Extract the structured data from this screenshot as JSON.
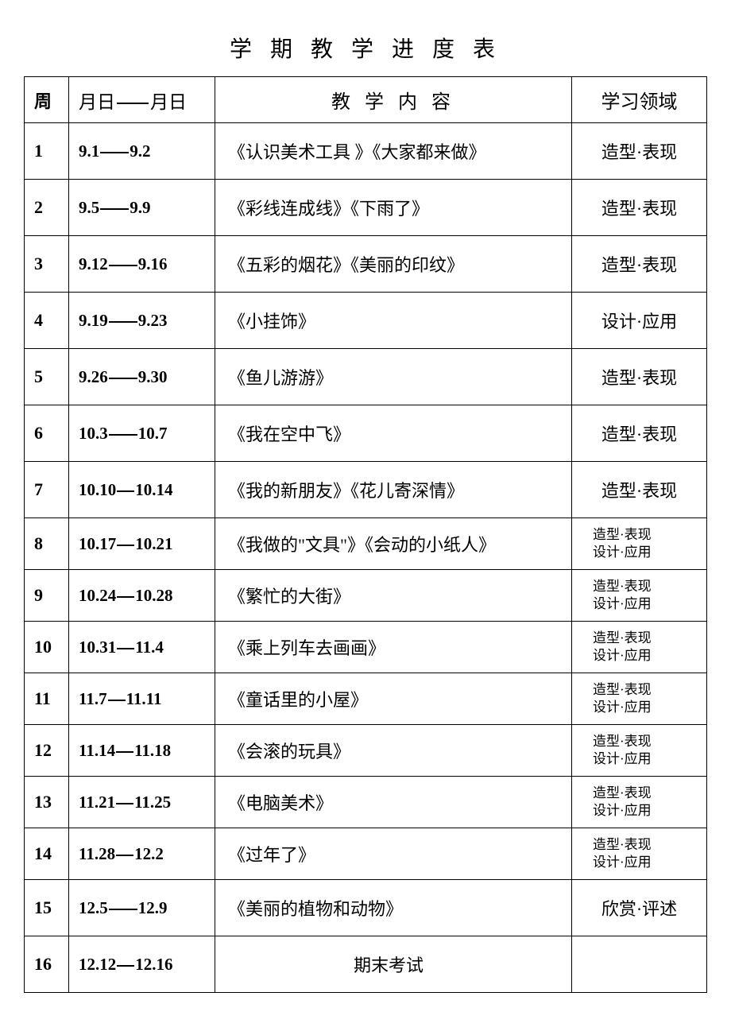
{
  "title": "学 期 教 学 进 度 表",
  "headers": {
    "week": "周",
    "date_prefix": "月日",
    "date_suffix": "月日",
    "content": "教 学 内 容",
    "domain": "学习领域"
  },
  "domain_single": {
    "modeling": "造型·表现",
    "design": "设计·应用",
    "appreciate": "欣赏·评述"
  },
  "domain_double_line1": "造型·表现",
  "domain_double_line2": "设计·应用",
  "rows": [
    {
      "week": "1",
      "d1": "9.1",
      "d2": "9.2",
      "dash": "long",
      "content": "《认识美术工具 》《大家都来做》",
      "domain_type": "modeling"
    },
    {
      "week": "2",
      "d1": "9.5",
      "d2": "9.9",
      "dash": "long",
      "content": "《彩线连成线》《下雨了》",
      "domain_type": "modeling"
    },
    {
      "week": "3",
      "d1": "9.12",
      "d2": "9.16",
      "dash": "long",
      "content": "《五彩的烟花》《美丽的印纹》",
      "domain_type": "modeling"
    },
    {
      "week": "4",
      "d1": "9.19",
      "d2": "9.23",
      "dash": "long",
      "content": "《小挂饰》",
      "domain_type": "design"
    },
    {
      "week": "5",
      "d1": "9.26",
      "d2": "9.30",
      "dash": "long",
      "content": "《鱼儿游游》",
      "domain_type": "modeling"
    },
    {
      "week": "6",
      "d1": "10.3",
      "d2": "10.7",
      "dash": "long",
      "content": "《我在空中飞》",
      "domain_type": "modeling"
    },
    {
      "week": "7",
      "d1": "10.10",
      "d2": "10.14",
      "dash": "short",
      "content": "《我的新朋友》《花儿寄深情》",
      "domain_type": "modeling"
    },
    {
      "week": "8",
      "d1": "10.17",
      "d2": "10.21",
      "dash": "short",
      "content": "《我做的\"文具\"》《会动的小纸人》",
      "domain_type": "double"
    },
    {
      "week": "9",
      "d1": "10.24",
      "d2": "10.28",
      "dash": "short",
      "content": "《繁忙的大街》",
      "domain_type": "double"
    },
    {
      "week": "10",
      "d1": "10.31",
      "d2": "11.4",
      "dash": "short",
      "content": "《乘上列车去画画》",
      "domain_type": "double"
    },
    {
      "week": "11",
      "d1": "11.7",
      "d2": "11.11",
      "dash": "short",
      "content": "《童话里的小屋》",
      "domain_type": "double"
    },
    {
      "week": "12",
      "d1": "11.14",
      "d2": "11.18",
      "dash": "short",
      "content": "《会滚的玩具》",
      "domain_type": "double"
    },
    {
      "week": "13",
      "d1": "11.21",
      "d2": "11.25",
      "dash": "short",
      "content": "《电脑美术》",
      "domain_type": "double"
    },
    {
      "week": "14",
      "d1": "11.28",
      "d2": "12.2",
      "dash": "short",
      "content": "《过年了》",
      "domain_type": "double"
    },
    {
      "week": "15",
      "d1": "12.5",
      "d2": "12.9",
      "dash": "long",
      "content": "《美丽的植物和动物》",
      "domain_type": "appreciate"
    },
    {
      "week": "16",
      "d1": "12.12",
      "d2": "12.16",
      "dash": "short",
      "content": "期末考试",
      "domain_type": "empty",
      "center": true
    }
  ]
}
